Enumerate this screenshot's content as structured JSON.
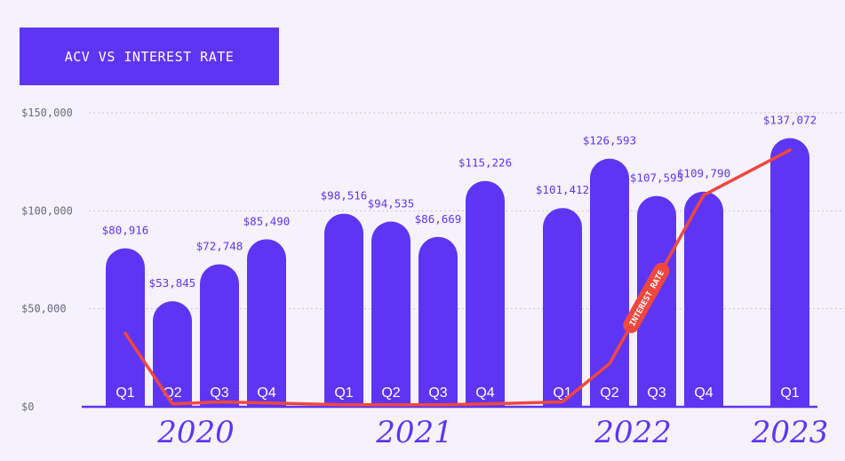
{
  "title": "ACV VS INTEREST RATE",
  "colors": {
    "bar": "#5e35f5",
    "line": "#f0473e",
    "background": "#f5f2fd",
    "grid": "#c9c5d6",
    "axis": "#5e35f5"
  },
  "chart_data": {
    "type": "bar",
    "title": "ACV VS INTEREST RATE",
    "ylabel": "",
    "xlabel": "",
    "ylim": [
      0,
      150000
    ],
    "yticks": [
      {
        "value": 0,
        "label": "$0"
      },
      {
        "value": 50000,
        "label": "$50,000"
      },
      {
        "value": 100000,
        "label": "$100,000"
      },
      {
        "value": 150000,
        "label": "$150,000"
      }
    ],
    "grid": true,
    "groups": [
      {
        "year": "2020",
        "bars": [
          {
            "quarter": "Q1",
            "value": 80916,
            "label": "$80,916"
          },
          {
            "quarter": "Q2",
            "value": 53845,
            "label": "$53,845"
          },
          {
            "quarter": "Q3",
            "value": 72748,
            "label": "$72,748"
          },
          {
            "quarter": "Q4",
            "value": 85490,
            "label": "$85,490"
          }
        ]
      },
      {
        "year": "2021",
        "bars": [
          {
            "quarter": "Q1",
            "value": 98516,
            "label": "$98,516"
          },
          {
            "quarter": "Q2",
            "value": 94535,
            "label": "$94,535"
          },
          {
            "quarter": "Q3",
            "value": 86669,
            "label": "$86,669"
          },
          {
            "quarter": "Q4",
            "value": 115226,
            "label": "$115,226"
          }
        ]
      },
      {
        "year": "2022",
        "bars": [
          {
            "quarter": "Q1",
            "value": 101412,
            "label": "$101,412"
          },
          {
            "quarter": "Q2",
            "value": 126593,
            "label": "$126,593"
          },
          {
            "quarter": "Q3",
            "value": 107595,
            "label": "$107,595"
          },
          {
            "quarter": "Q4",
            "value": 109790,
            "label": "$109,790"
          }
        ]
      },
      {
        "year": "2023",
        "bars": [
          {
            "quarter": "Q1",
            "value": 137072,
            "label": "$137,072"
          }
        ]
      }
    ],
    "interest_rate_series": {
      "name": "INTEREST RATE",
      "values_on_acv_scale": [
        37500,
        1500,
        2500,
        2000,
        1000,
        1000,
        1000,
        1500,
        2500,
        22000,
        65000,
        108000,
        131000
      ]
    }
  }
}
